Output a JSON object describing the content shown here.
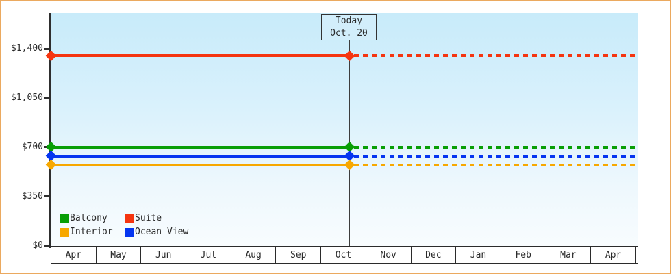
{
  "frame": {
    "border_color": "#eba95f"
  },
  "today_annotation": {
    "line1": "Today",
    "line2": "Oct. 20"
  },
  "legend": {
    "items": [
      {
        "label": "Balcony",
        "color": "#089e06"
      },
      {
        "label": "Suite",
        "color": "#f53510"
      },
      {
        "label": "Interior",
        "color": "#f7a800"
      },
      {
        "label": "Ocean View",
        "color": "#0535f0"
      }
    ]
  },
  "chart_data": {
    "type": "line",
    "title": "",
    "xlabel": "",
    "ylabel": "",
    "x_categories": [
      "Apr",
      "May",
      "Jun",
      "Jul",
      "Aug",
      "Sep",
      "Oct",
      "Nov",
      "Dec",
      "Jan",
      "Feb",
      "Mar",
      "Apr"
    ],
    "y_ticks": [
      {
        "label": "$1,400",
        "value": 1400
      },
      {
        "label": "$1,050",
        "value": 1050
      },
      {
        "label": "$700",
        "value": 700
      },
      {
        "label": "$350",
        "value": 350
      },
      {
        "label": "$0",
        "value": 0
      }
    ],
    "ylim": [
      0,
      1655
    ],
    "grid": false,
    "legend_position": "bottom-left",
    "today": {
      "month": "Oct",
      "day": 20,
      "label": "Today Oct. 20"
    },
    "series": [
      {
        "name": "Suite",
        "color": "#f53510",
        "value": 1350,
        "style_before_today": "solid",
        "style_after_today": "dashed",
        "marker": "diamond"
      },
      {
        "name": "Balcony",
        "color": "#089e06",
        "value": 700,
        "style_before_today": "solid",
        "style_after_today": "dashed",
        "marker": "diamond"
      },
      {
        "name": "Ocean View",
        "color": "#0535f0",
        "value": 637,
        "style_before_today": "solid",
        "style_after_today": "dashed",
        "marker": "diamond"
      },
      {
        "name": "Interior",
        "color": "#f7a800",
        "value": 573,
        "style_before_today": "solid",
        "style_after_today": "dashed",
        "marker": "diamond"
      }
    ]
  }
}
